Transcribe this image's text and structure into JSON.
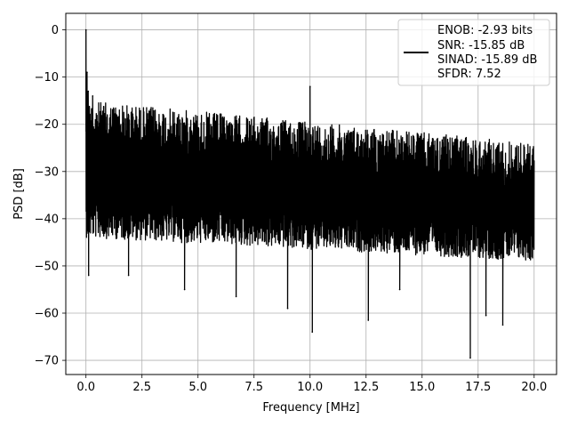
{
  "chart_data": {
    "type": "line",
    "title": "",
    "xlabel": "Frequency [MHz]",
    "ylabel": "PSD [dB]",
    "xlim": [
      -0.9,
      21.0
    ],
    "ylim": [
      -73,
      3.5
    ],
    "xticks": [
      0.0,
      2.5,
      5.0,
      7.5,
      10.0,
      12.5,
      15.0,
      17.5,
      20.0
    ],
    "xtick_labels": [
      "0.0",
      "2.5",
      "5.0",
      "7.5",
      "10.0",
      "12.5",
      "15.0",
      "17.5",
      "20.0"
    ],
    "yticks": [
      0,
      -10,
      -20,
      -30,
      -40,
      -50,
      -60,
      -70
    ],
    "ytick_labels": [
      "0",
      "−10",
      "−20",
      "−30",
      "−40",
      "−50",
      "−60",
      "−70"
    ],
    "grid": true,
    "legend_position": "top-right",
    "legend_entries": [
      "ENOB: -2.93 bits",
      "SNR: -15.85 dB",
      "SINAD: -15.89 dB",
      "SFDR: 7.52"
    ],
    "series": [
      {
        "color": "#000000",
        "x_range": [
          0.0,
          20.0
        ],
        "envelope": {
          "upper_start": -14,
          "upper_end": -23,
          "lower_start": -40,
          "lower_end": -45
        },
        "peaks": [
          {
            "x": 0.0,
            "y": 0.0
          },
          {
            "x": 0.05,
            "y": -9.0
          },
          {
            "x": 0.1,
            "y": -13.0
          },
          {
            "x": 0.3,
            "y": -14.0
          },
          {
            "x": 10.0,
            "y": -12.0
          }
        ],
        "dips": [
          {
            "x": 0.12,
            "y": -52.0
          },
          {
            "x": 1.9,
            "y": -52.0
          },
          {
            "x": 4.4,
            "y": -55.0
          },
          {
            "x": 6.7,
            "y": -56.5
          },
          {
            "x": 9.0,
            "y": -59.0
          },
          {
            "x": 10.1,
            "y": -64.0
          },
          {
            "x": 12.6,
            "y": -61.5
          },
          {
            "x": 14.0,
            "y": -55.0
          },
          {
            "x": 17.15,
            "y": -69.5
          },
          {
            "x": 17.85,
            "y": -60.5
          },
          {
            "x": 18.6,
            "y": -62.5
          }
        ]
      }
    ]
  }
}
